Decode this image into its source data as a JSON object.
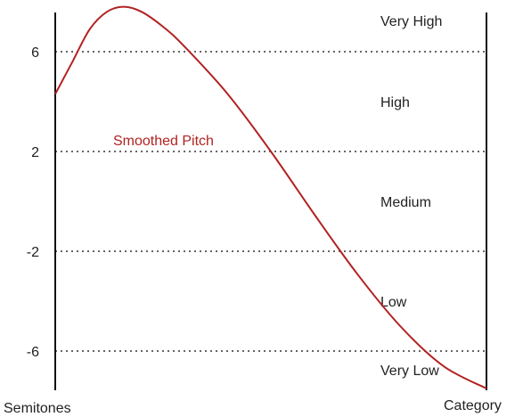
{
  "chart_data": {
    "type": "line",
    "xlabel": "",
    "left_axis_title": "Semitones",
    "right_axis_title": "Category",
    "ylim": [
      -7.5,
      8.5
    ],
    "y_ticks": [
      {
        "value": 6,
        "label": "6"
      },
      {
        "value": 2,
        "label": "2"
      },
      {
        "value": -2,
        "label": "-2"
      },
      {
        "value": -6,
        "label": "-6"
      }
    ],
    "grid": "dotted horizontal lines at 6, 2, -2, -6",
    "category_bands": [
      {
        "label": "Very High",
        "from": 6,
        "to": 8.5
      },
      {
        "label": "High",
        "from": 2,
        "to": 6
      },
      {
        "label": "Medium",
        "from": -2,
        "to": 2
      },
      {
        "label": "Low",
        "from": -6,
        "to": -2
      },
      {
        "label": "Very Low",
        "from": -7.5,
        "to": -6
      }
    ],
    "series": [
      {
        "name": "Smoothed Pitch",
        "color": "#b22222",
        "x": [
          0,
          0.04,
          0.08,
          0.12,
          0.16,
          0.2,
          0.25,
          0.3,
          0.4,
          0.5,
          0.6,
          0.7,
          0.8,
          0.9,
          1.0
        ],
        "values": [
          4.3,
          5.6,
          6.9,
          7.6,
          7.8,
          7.6,
          7.0,
          6.2,
          4.3,
          2.0,
          -0.5,
          -2.9,
          -5.0,
          -6.6,
          -7.5
        ]
      }
    ]
  }
}
